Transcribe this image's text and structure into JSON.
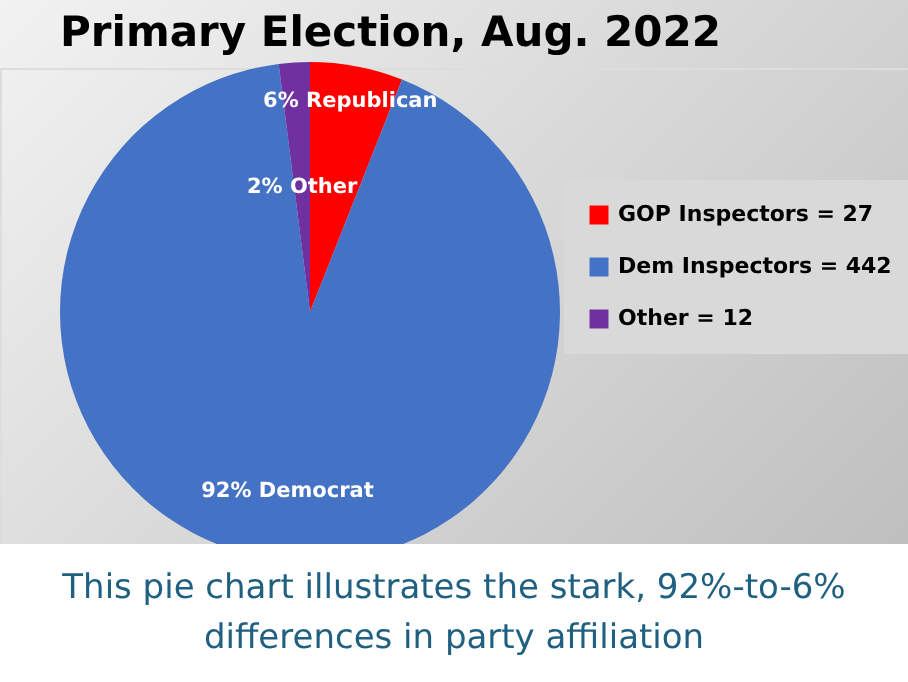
{
  "chart_data": {
    "type": "pie",
    "title": "Primary Election,  Aug. 2022",
    "categories": [
      "GOP Inspectors = 27",
      "Dem Inspectors = 442",
      "Other = 12"
    ],
    "values": [
      6,
      92,
      2
    ],
    "colors": [
      "#ff0000",
      "#4472c4",
      "#7030a0"
    ],
    "value_labels": [
      "6% Republican",
      "92% Democrat",
      "2% Other"
    ],
    "legend": "right",
    "annotations": [
      "This pie chart illustrates the stark, 92%-to-6% differences in party affiliation"
    ]
  }
}
